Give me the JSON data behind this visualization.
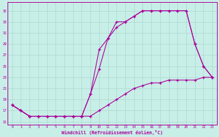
{
  "background_color": "#c8eee8",
  "grid_color": "#aad8cc",
  "line_color": "#aa0099",
  "xlim_min": -0.5,
  "xlim_max": 23.5,
  "ylim_min": 14.5,
  "ylim_max": 36.5,
  "yticks": [
    15,
    17,
    19,
    21,
    23,
    25,
    27,
    29,
    31,
    33,
    35
  ],
  "xticks": [
    0,
    1,
    2,
    3,
    4,
    5,
    6,
    7,
    8,
    9,
    10,
    11,
    12,
    13,
    14,
    15,
    16,
    17,
    18,
    19,
    20,
    21,
    22,
    23
  ],
  "xlabel": "Windchill (Refroidissement éolien,°C)",
  "line1_x": [
    0,
    1,
    2,
    3,
    4,
    5,
    6,
    7,
    8,
    9,
    10,
    11,
    12,
    13,
    14,
    15,
    16,
    17,
    18,
    19,
    20,
    21,
    22,
    23
  ],
  "line1_y": [
    18,
    17,
    16,
    16,
    16,
    16,
    16,
    16,
    16,
    16,
    17,
    18,
    19,
    20,
    21,
    21.5,
    22,
    22,
    22.5,
    22.5,
    22.5,
    22.5,
    23,
    23
  ],
  "line2_x": [
    0,
    1,
    2,
    3,
    4,
    5,
    6,
    7,
    8,
    9,
    10,
    11,
    12,
    13,
    14,
    15,
    16,
    17,
    18,
    19,
    20,
    21,
    22,
    23
  ],
  "line2_y": [
    18,
    17,
    16,
    16,
    16,
    16,
    16,
    16,
    16,
    20,
    24.5,
    30,
    33,
    33,
    34,
    35,
    35,
    35,
    35,
    35,
    35,
    29,
    25,
    23
  ],
  "line3_x": [
    0,
    1,
    2,
    3,
    4,
    5,
    6,
    7,
    8,
    9,
    10,
    11,
    12,
    13,
    14,
    15,
    16,
    17,
    18,
    19,
    20,
    21,
    22,
    23
  ],
  "line3_y": [
    18,
    17,
    16,
    16,
    16,
    16,
    16,
    16,
    16,
    20,
    28,
    30,
    32,
    33,
    34,
    35,
    35,
    35,
    35,
    35,
    35,
    29,
    25,
    23
  ]
}
